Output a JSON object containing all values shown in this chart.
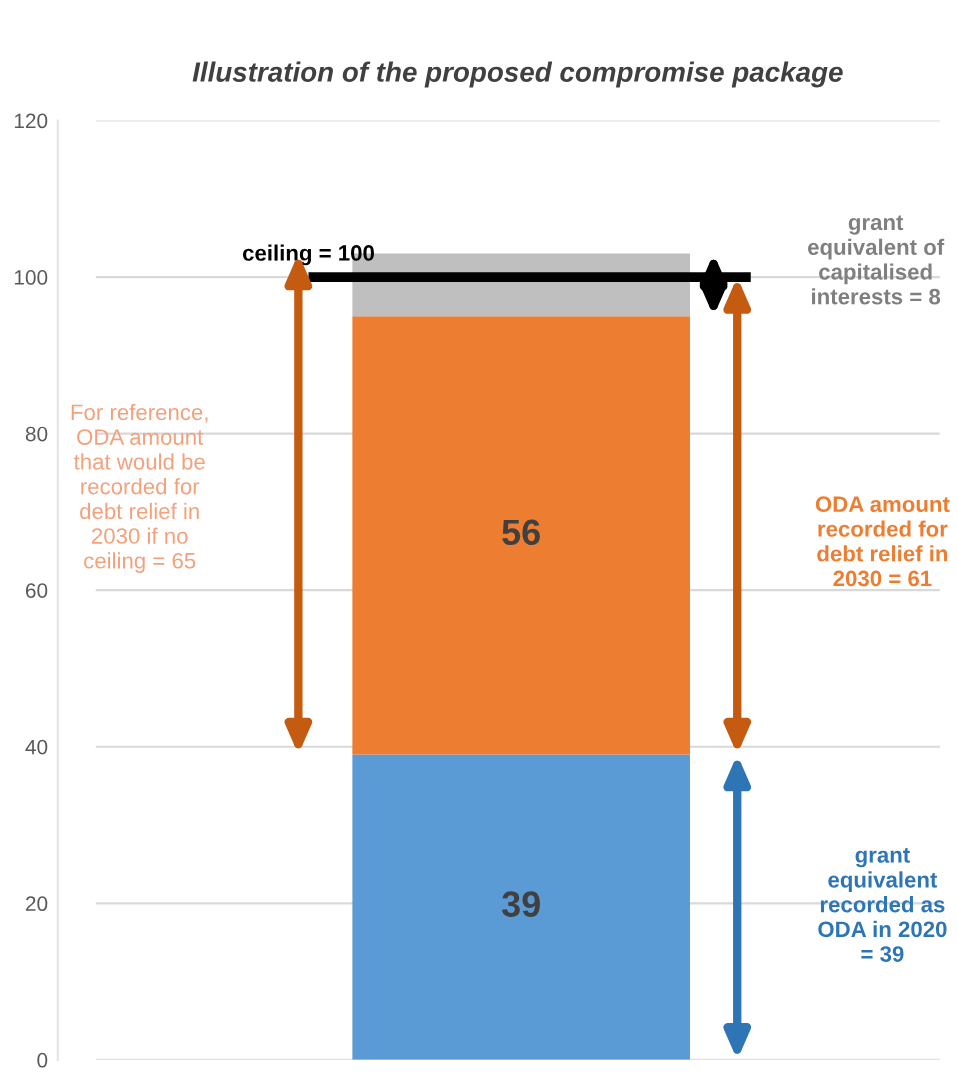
{
  "chart_data": {
    "type": "bar",
    "title": "Illustration of the proposed compromise package",
    "categories": [
      null
    ],
    "stacked": true,
    "series": [
      {
        "color": "#5b9bd5",
        "values": [
          39
        ],
        "value_labels": [
          "39"
        ]
      },
      {
        "color": "#ed7d31",
        "values": [
          56
        ],
        "value_labels": [
          "56"
        ]
      },
      {
        "color": "#bfbfbf",
        "values": [
          8
        ],
        "value_labels": [
          null
        ]
      }
    ],
    "ylim": [
      0,
      120
    ],
    "yticks": [
      0,
      20,
      40,
      60,
      80,
      100,
      120
    ],
    "grid": "y",
    "ref_lines": [
      {
        "axis": "y",
        "value": 100,
        "label": "ceiling = 100",
        "color": "#000000"
      }
    ],
    "annotations": [
      "For reference,\nODA amount\nthat would be\nrecorded for\ndebt relief in\n2030 if no\nceiling = 65",
      "grant\nequivalent of\ncapitalised\ninterests = 8",
      "ODA amount\nrecorded for\ndebt relief in\n2030 = 61",
      "grant\nequivalent\nrecorded as\nODA in 2020\n= 39"
    ]
  }
}
